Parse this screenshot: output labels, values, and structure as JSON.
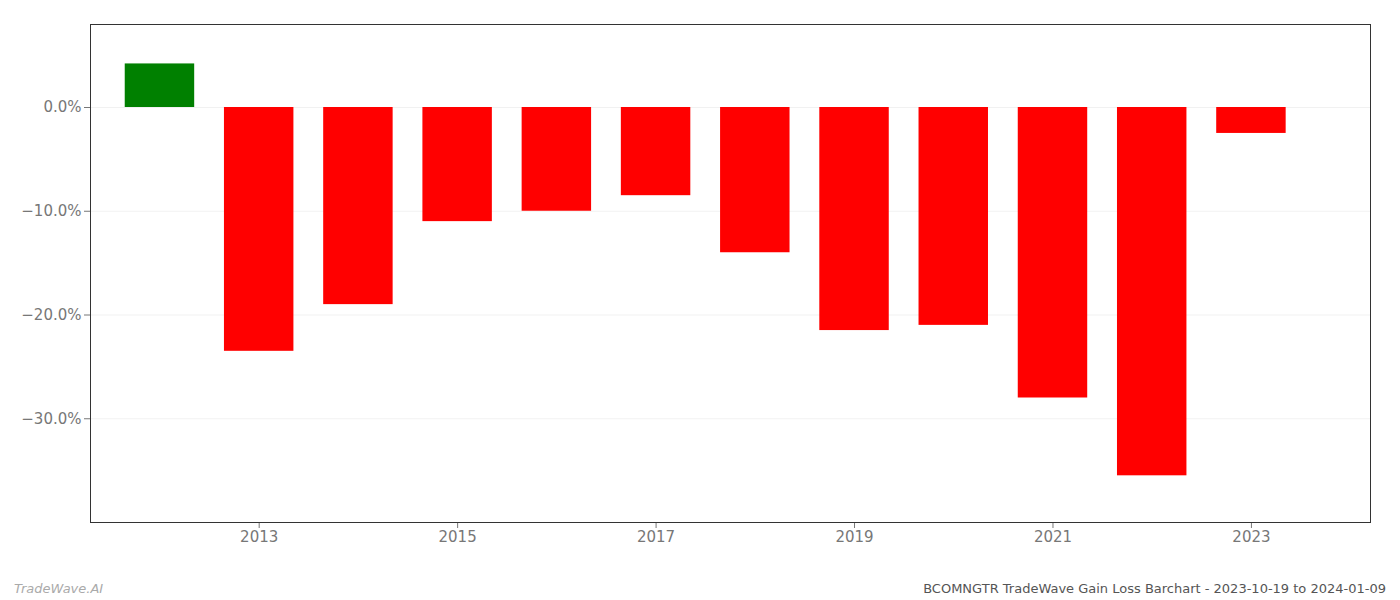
{
  "chart_data": {
    "type": "bar",
    "title": "BCOMNGTR TradeWave Gain Loss Barchart - 2023-10-19 to 2024-01-09",
    "annotations": [
      "TradeWave.AI"
    ],
    "x": [
      2012,
      2013,
      2014,
      2015,
      2016,
      2017,
      2018,
      2019,
      2020,
      2021,
      2022,
      2023
    ],
    "values": [
      4.2,
      -23.5,
      -19.0,
      -11.0,
      -10.0,
      -8.5,
      -14.0,
      -21.5,
      -21.0,
      -28.0,
      -35.5,
      -2.5
    ],
    "colors": [
      "#008000",
      "#ff0000",
      "#ff0000",
      "#ff0000",
      "#ff0000",
      "#ff0000",
      "#ff0000",
      "#ff0000",
      "#ff0000",
      "#ff0000",
      "#ff0000",
      "#ff0000"
    ],
    "xlim": [
      2011.3,
      2024.2
    ],
    "xticks": [
      2013,
      2015,
      2017,
      2019,
      2021,
      2023
    ],
    "ylim": [
      -40,
      8
    ],
    "yticks": [
      {
        "value": 0,
        "label": "0.0%"
      },
      {
        "value": -10,
        "label": "−10.0%"
      },
      {
        "value": -20,
        "label": "−20.0%"
      },
      {
        "value": -30,
        "label": "−30.0%"
      }
    ],
    "grid": true
  }
}
